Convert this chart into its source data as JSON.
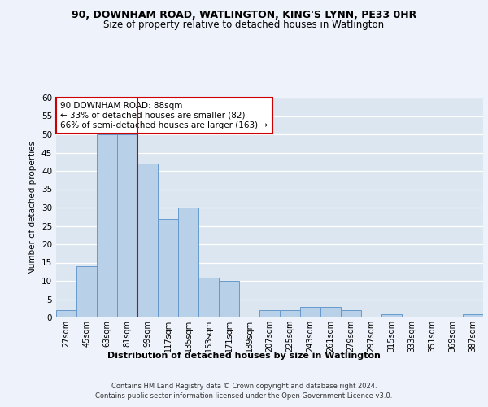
{
  "title": "90, DOWNHAM ROAD, WATLINGTON, KING'S LYNN, PE33 0HR",
  "subtitle": "Size of property relative to detached houses in Watlington",
  "xlabel": "Distribution of detached houses by size in Watlington",
  "ylabel": "Number of detached properties",
  "bar_labels": [
    "27sqm",
    "45sqm",
    "63sqm",
    "81sqm",
    "99sqm",
    "117sqm",
    "135sqm",
    "153sqm",
    "171sqm",
    "189sqm",
    "207sqm",
    "225sqm",
    "243sqm",
    "261sqm",
    "279sqm",
    "297sqm",
    "315sqm",
    "333sqm",
    "351sqm",
    "369sqm",
    "387sqm"
  ],
  "bar_values": [
    2,
    14,
    50,
    50,
    42,
    27,
    30,
    11,
    10,
    0,
    2,
    2,
    3,
    3,
    2,
    0,
    1,
    0,
    0,
    0,
    1
  ],
  "bar_color": "#b8d0e8",
  "bar_edge_color": "#6699cc",
  "vline_color": "#cc0000",
  "vline_pos": 3.5,
  "annotation_text": "90 DOWNHAM ROAD: 88sqm\n← 33% of detached houses are smaller (82)\n66% of semi-detached houses are larger (163) →",
  "annotation_box_color": "#ffffff",
  "annotation_box_edge": "#cc0000",
  "ylim": [
    0,
    60
  ],
  "yticks": [
    0,
    5,
    10,
    15,
    20,
    25,
    30,
    35,
    40,
    45,
    50,
    55,
    60
  ],
  "footer1": "Contains HM Land Registry data © Crown copyright and database right 2024.",
  "footer2": "Contains public sector information licensed under the Open Government Licence v3.0.",
  "bg_color": "#eef2fa",
  "plot_bg_color": "#dce6f0"
}
